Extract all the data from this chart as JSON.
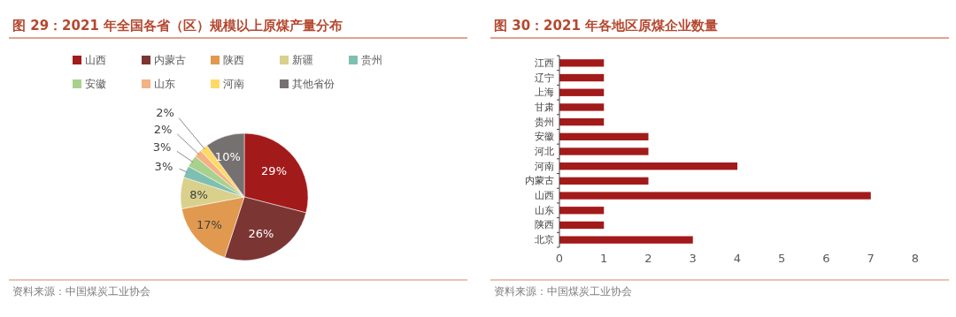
{
  "chart_data": [
    {
      "type": "pie",
      "title": "图 29：2021 年全国各省（区）规模以上原煤产量分布",
      "categories": [
        "山西",
        "内蒙古",
        "陕西",
        "新疆",
        "贵州",
        "安徽",
        "山东",
        "河南",
        "其他省份"
      ],
      "values": [
        29,
        26,
        17,
        8,
        3,
        3,
        2,
        2,
        10
      ],
      "value_labels": [
        "29%",
        "26%",
        "17%",
        "8%",
        "3%",
        "3%",
        "2%",
        "2%",
        "10%"
      ],
      "colors": [
        "#a31a1a",
        "#7b3533",
        "#e0994f",
        "#d9d08b",
        "#7fbfb0",
        "#a9d18e",
        "#f4b183",
        "#ffd966",
        "#767171"
      ],
      "legend": "top",
      "annotations": [
        "资料来源：中国煤炭工业协会"
      ]
    },
    {
      "type": "bar",
      "orientation": "horizontal",
      "title": "图 30：2021 年各地区原煤企业数量",
      "categories": [
        "江西",
        "辽宁",
        "上海",
        "甘肃",
        "贵州",
        "安徽",
        "河北",
        "河南",
        "内蒙古",
        "山西",
        "山东",
        "陕西",
        "北京"
      ],
      "values": [
        1,
        1,
        1,
        1,
        1,
        2,
        2,
        4,
        2,
        7,
        1,
        1,
        3
      ],
      "color": "#a31a1a",
      "xlim": [
        0,
        8
      ],
      "xticks": [
        0,
        1,
        2,
        3,
        4,
        5,
        6,
        7,
        8
      ],
      "annotations": [
        "资料来源：中国煤炭工业协会"
      ]
    }
  ]
}
